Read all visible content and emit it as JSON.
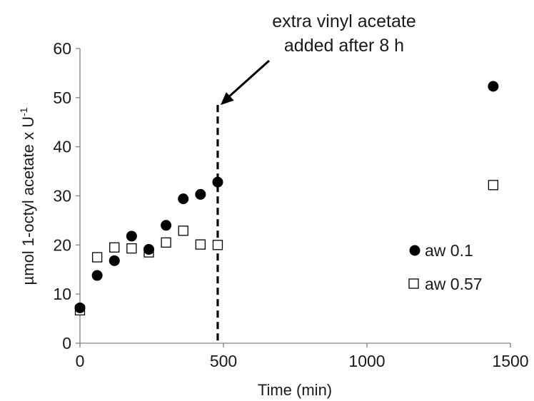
{
  "chart_data": {
    "type": "scatter",
    "xlabel": "Time (min)",
    "ylabel": "µmol 1-octyl acetate x U",
    "ylabel_sup": "-1",
    "xlim": [
      0,
      1500
    ],
    "ylim": [
      0,
      60
    ],
    "xticks": [
      0,
      500,
      1000,
      1500
    ],
    "yticks": [
      0,
      10,
      20,
      30,
      40,
      50,
      60
    ],
    "grid": false,
    "legend_position": "right",
    "series": [
      {
        "name": "aw 0.1",
        "marker": "filled-circle",
        "color": "#000000",
        "x": [
          0,
          60,
          120,
          180,
          240,
          300,
          360,
          420,
          480,
          1440
        ],
        "y": [
          7.2,
          13.8,
          16.8,
          21.8,
          19.1,
          24.0,
          29.4,
          30.3,
          32.8,
          52.3
        ]
      },
      {
        "name": "aw 0.57",
        "marker": "open-square",
        "color": "#000000",
        "x": [
          0,
          60,
          120,
          180,
          240,
          300,
          360,
          420,
          480,
          1440
        ],
        "y": [
          6.7,
          17.5,
          19.5,
          19.3,
          18.5,
          20.5,
          22.9,
          20.1,
          20.0,
          32.2
        ]
      }
    ],
    "annotations": [
      {
        "text_lines": [
          "extra vinyl acetate",
          "added after 8 h"
        ],
        "vline_x": 480,
        "vline_y_top": 48.5,
        "arrow_target": [
          480,
          48.5
        ]
      }
    ]
  }
}
